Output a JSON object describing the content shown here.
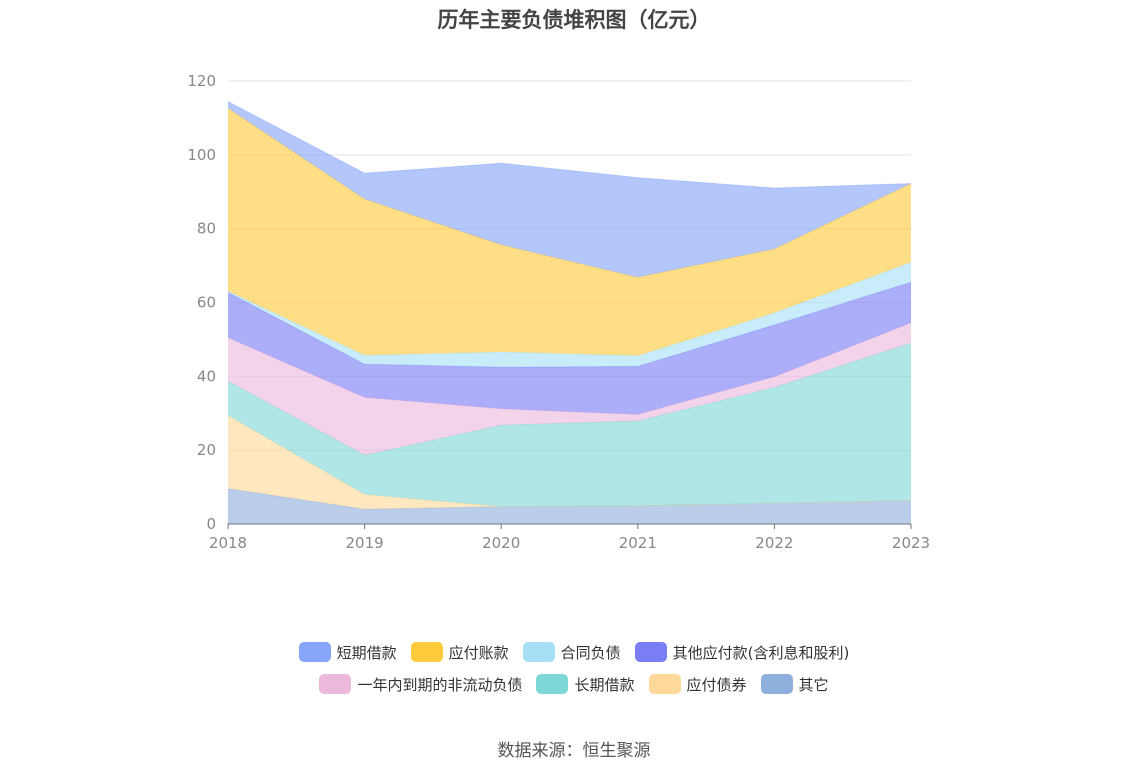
{
  "chart_data": {
    "type": "area",
    "stacked": true,
    "title": "历年主要负债堆积图（亿元）",
    "x": [
      "2018",
      "2019",
      "2020",
      "2021",
      "2022",
      "2023"
    ],
    "ylim": [
      0,
      120
    ],
    "yticks": [
      0,
      20,
      40,
      60,
      80,
      100,
      120
    ],
    "grid": true,
    "legend_position": "bottom",
    "series": [
      {
        "name": "其它",
        "color": "#8fb0dc",
        "values": [
          9.6,
          4.0,
          4.7,
          4.9,
          5.6,
          6.3
        ]
      },
      {
        "name": "应付债券",
        "color": "#ffd99a",
        "values": [
          19.8,
          4.0,
          0,
          0,
          0,
          0
        ]
      },
      {
        "name": "长期借款",
        "color": "#7fd6d6",
        "values": [
          9.3,
          10.6,
          22.1,
          23.0,
          31.4,
          42.7
        ]
      },
      {
        "name": "一年内到期的非流动负债",
        "color": "#ecb8db",
        "values": [
          11.8,
          15.7,
          4.4,
          1.8,
          2.9,
          5.5
        ]
      },
      {
        "name": "其他应付款(含利息和股利)",
        "color": "#7b7df5",
        "values": [
          12.2,
          9.0,
          11.3,
          13.0,
          14.0,
          11.0
        ]
      },
      {
        "name": "合同负债",
        "color": "#a6e0f7",
        "values": [
          0.4,
          2.4,
          4.1,
          2.9,
          3.3,
          5.4
        ]
      },
      {
        "name": "应付账款",
        "color": "#ffca3b",
        "values": [
          49.5,
          42.3,
          29.0,
          21.2,
          17.3,
          21.3
        ]
      },
      {
        "name": "短期借款",
        "color": "#86a5fb",
        "values": [
          1.8,
          7.0,
          22.1,
          27.0,
          16.5,
          0
        ]
      }
    ]
  },
  "legend": {
    "row1": [
      {
        "label": "短期借款",
        "color": "#86a5fb"
      },
      {
        "label": "应付账款",
        "color": "#ffca3b"
      },
      {
        "label": "合同负债",
        "color": "#a6e0f7"
      },
      {
        "label": "其他应付款(含利息和股利)",
        "color": "#7b7df5"
      }
    ],
    "row2": [
      {
        "label": "一年内到期的非流动负债",
        "color": "#ecb8db"
      },
      {
        "label": "长期借款",
        "color": "#7fd6d6"
      },
      {
        "label": "应付债券",
        "color": "#ffd99a"
      },
      {
        "label": "其它",
        "color": "#8fb0dc"
      }
    ]
  },
  "source": "数据来源：恒生聚源"
}
